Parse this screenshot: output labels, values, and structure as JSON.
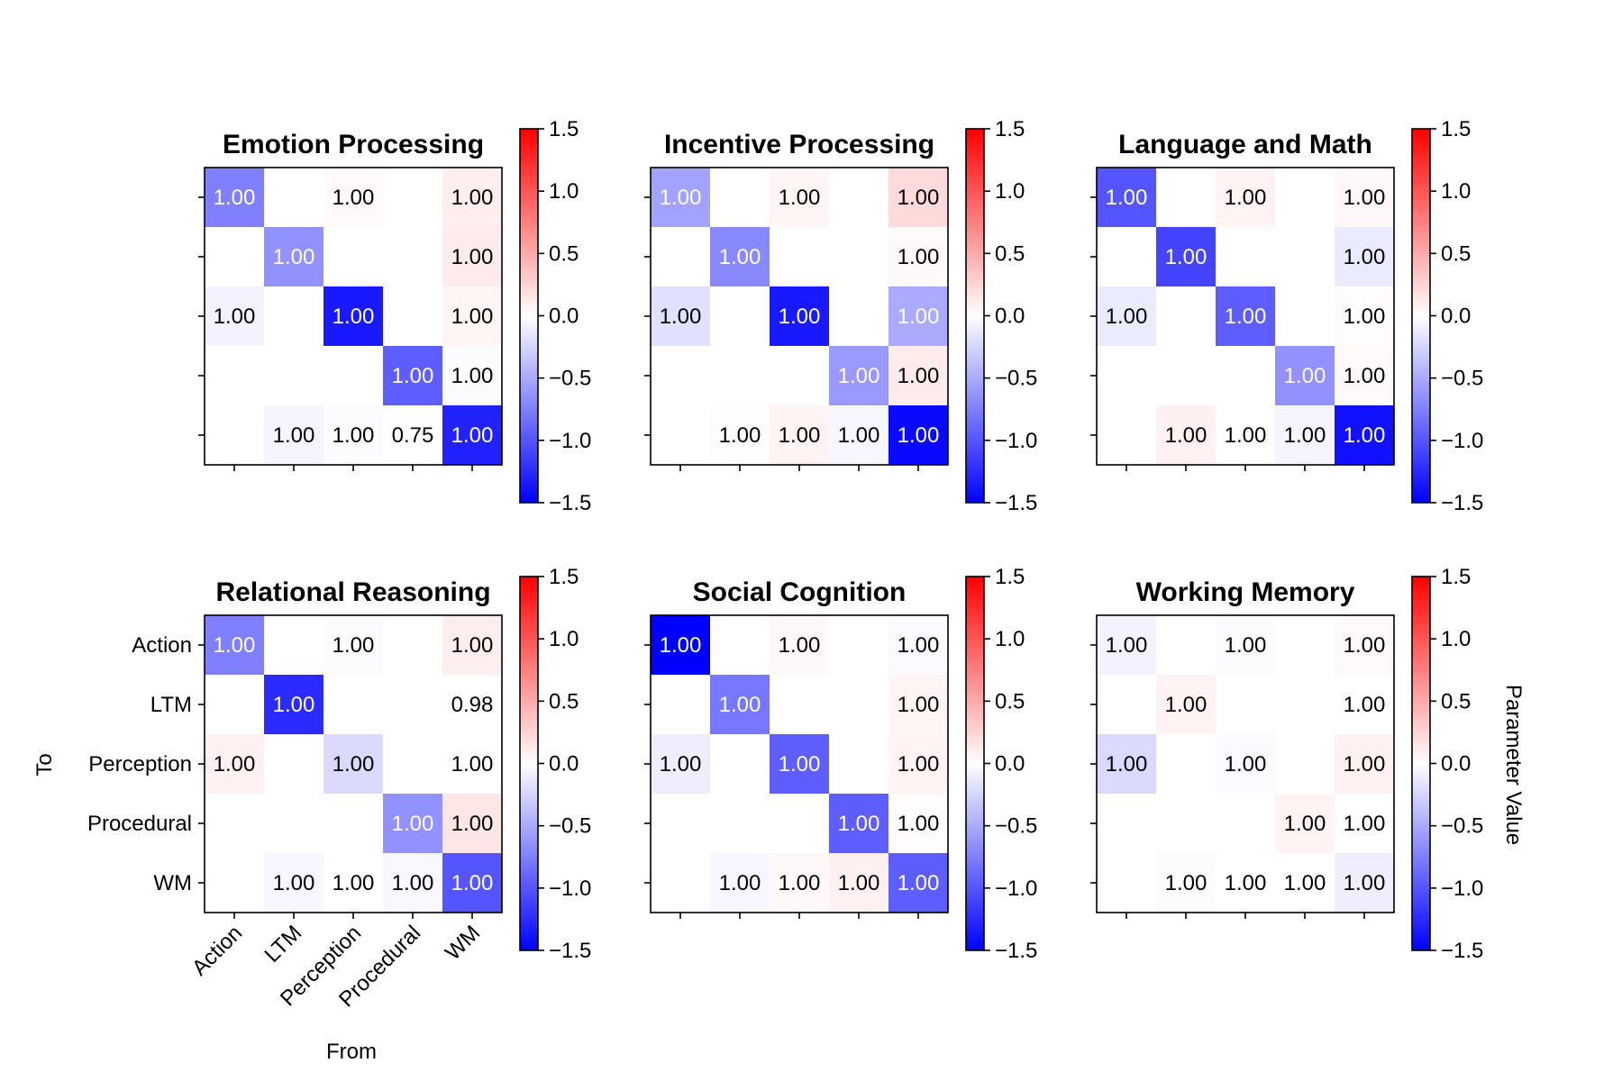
{
  "chart_data": {
    "type": "heatmap",
    "row_categories": [
      "Action",
      "LTM",
      "Perception",
      "Procedural",
      "WM"
    ],
    "col_categories": [
      "Action",
      "LTM",
      "Perception",
      "Procedural",
      "WM"
    ],
    "xlabel": "From",
    "ylabel": "To",
    "colorbar_label": "Parameter Value",
    "colormap": "bwr",
    "colorbar_range": [
      -1.5,
      1.5
    ],
    "colorbar_ticks": [
      "1.5",
      "1.0",
      "0.5",
      "0.0",
      "−0.5",
      "−1.0",
      "−1.5"
    ],
    "colors": {
      "low": "#0000ff",
      "mid": "#ffffff",
      "high": "#ff0000"
    },
    "panels": [
      {
        "title": "Emotion Processing",
        "values": [
          [
            -0.75,
            null,
            0.03,
            null,
            0.1
          ],
          [
            null,
            -0.65,
            null,
            null,
            0.12
          ],
          [
            -0.07,
            null,
            -1.35,
            null,
            0.06
          ],
          [
            null,
            null,
            null,
            -0.95,
            -0.02
          ],
          [
            null,
            -0.06,
            -0.02,
            0.0,
            -1.3
          ]
        ],
        "labels": [
          [
            "1.00",
            "",
            "1.00",
            "",
            "1.00"
          ],
          [
            "",
            "1.00",
            "",
            "",
            "1.00"
          ],
          [
            "1.00",
            "",
            "1.00",
            "",
            "1.00"
          ],
          [
            "",
            "",
            "",
            "1.00",
            "1.00"
          ],
          [
            "",
            "1.00",
            "1.00",
            "0.75",
            "1.00"
          ]
        ]
      },
      {
        "title": "Incentive Processing",
        "values": [
          [
            -0.55,
            null,
            0.06,
            null,
            0.22
          ],
          [
            null,
            -0.7,
            null,
            null,
            0.03
          ],
          [
            -0.18,
            null,
            -1.35,
            null,
            -0.5
          ],
          [
            null,
            null,
            null,
            -0.6,
            0.12
          ],
          [
            null,
            0.02,
            0.07,
            -0.05,
            -1.45
          ]
        ],
        "labels": [
          [
            "1.00",
            "",
            "1.00",
            "",
            "1.00"
          ],
          [
            "",
            "1.00",
            "",
            "",
            "1.00"
          ],
          [
            "1.00",
            "",
            "1.00",
            "",
            "1.00"
          ],
          [
            "",
            "",
            "",
            "1.00",
            "1.00"
          ],
          [
            "",
            "1.00",
            "1.00",
            "1.00",
            "1.00"
          ]
        ]
      },
      {
        "title": "Language and Math",
        "values": [
          [
            -1.0,
            null,
            0.07,
            null,
            0.04
          ],
          [
            null,
            -1.1,
            null,
            null,
            -0.12
          ],
          [
            -0.12,
            null,
            -0.95,
            null,
            0.02
          ],
          [
            null,
            null,
            null,
            -0.65,
            0.03
          ],
          [
            null,
            0.08,
            0.0,
            -0.06,
            -1.4
          ]
        ],
        "labels": [
          [
            "1.00",
            "",
            "1.00",
            "",
            "1.00"
          ],
          [
            "",
            "1.00",
            "",
            "",
            "1.00"
          ],
          [
            "1.00",
            "",
            "1.00",
            "",
            "1.00"
          ],
          [
            "",
            "",
            "",
            "1.00",
            "1.00"
          ],
          [
            "",
            "1.00",
            "1.00",
            "1.00",
            "1.00"
          ]
        ]
      },
      {
        "title": "Relational Reasoning",
        "values": [
          [
            -0.75,
            null,
            -0.02,
            null,
            0.1
          ],
          [
            null,
            -1.25,
            null,
            null,
            0.0
          ],
          [
            0.08,
            null,
            -0.22,
            null,
            0.0
          ],
          [
            null,
            null,
            null,
            -0.65,
            0.15
          ],
          [
            null,
            -0.05,
            0.0,
            -0.04,
            -1.0
          ]
        ],
        "labels": [
          [
            "1.00",
            "",
            "1.00",
            "",
            "1.00"
          ],
          [
            "",
            "1.00",
            "",
            "",
            "0.98"
          ],
          [
            "1.00",
            "",
            "1.00",
            "",
            "1.00"
          ],
          [
            "",
            "",
            "",
            "1.00",
            "1.00"
          ],
          [
            "",
            "1.00",
            "1.00",
            "1.00",
            "1.00"
          ]
        ]
      },
      {
        "title": "Social Cognition",
        "values": [
          [
            -1.5,
            null,
            0.04,
            null,
            -0.03
          ],
          [
            null,
            -0.8,
            null,
            null,
            0.06
          ],
          [
            -0.1,
            null,
            -0.95,
            null,
            0.07
          ],
          [
            null,
            null,
            null,
            -0.95,
            0.02
          ],
          [
            null,
            -0.05,
            0.04,
            0.08,
            -0.95
          ]
        ],
        "labels": [
          [
            "1.00",
            "",
            "1.00",
            "",
            "1.00"
          ],
          [
            "",
            "1.00",
            "",
            "",
            "1.00"
          ],
          [
            "1.00",
            "",
            "1.00",
            "",
            "1.00"
          ],
          [
            "",
            "",
            "",
            "1.00",
            "1.00"
          ],
          [
            "",
            "1.00",
            "1.00",
            "1.00",
            "1.00"
          ]
        ]
      },
      {
        "title": "Working Memory",
        "values": [
          [
            -0.07,
            null,
            -0.02,
            null,
            0.03
          ],
          [
            null,
            0.07,
            null,
            null,
            0.0
          ],
          [
            -0.22,
            null,
            -0.03,
            null,
            0.08
          ],
          [
            null,
            null,
            null,
            0.07,
            0.0
          ],
          [
            null,
            -0.02,
            0.0,
            0.0,
            -0.1
          ]
        ],
        "labels": [
          [
            "1.00",
            "",
            "1.00",
            "",
            "1.00"
          ],
          [
            "",
            "1.00",
            "",
            "",
            "1.00"
          ],
          [
            "1.00",
            "",
            "1.00",
            "",
            "1.00"
          ],
          [
            "",
            "",
            "",
            "1.00",
            "1.00"
          ],
          [
            "",
            "1.00",
            "1.00",
            "1.00",
            "1.00"
          ]
        ]
      }
    ]
  }
}
